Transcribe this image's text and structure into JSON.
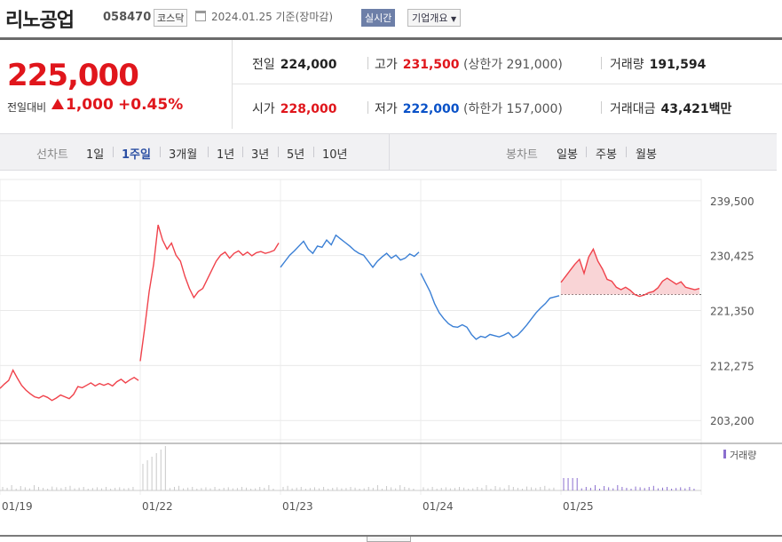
{
  "header": {
    "name": "리노공업",
    "code": "058470",
    "market": "코스닥",
    "date": "2024.01.25 기준(장마감)",
    "realtime": "실시간",
    "company_info": "기업개요"
  },
  "price": {
    "current": "225,000",
    "diff_label": "전일대비",
    "diff_value": "1,000",
    "rate": "+0.45%"
  },
  "stats": {
    "prev_label": "전일",
    "prev_value": "224,000",
    "high_label": "고가",
    "high_value": "231,500",
    "upper_limit": "(상한가 291,000)",
    "volume_label": "거래량",
    "volume_value": "191,594",
    "open_label": "시가",
    "open_value": "228,000",
    "low_label": "저가",
    "low_value": "222,000",
    "lower_limit": "(하한가 157,000)",
    "amount_label": "거래대금",
    "amount_value": "43,421",
    "amount_unit": "백만"
  },
  "tabs": {
    "line_label": "선차트",
    "periods": [
      "1일",
      "1주일",
      "3개월",
      "1년",
      "3년",
      "5년",
      "10년"
    ],
    "active_period": "1주일",
    "candle_label": "봉차트",
    "candles": [
      "일봉",
      "주봉",
      "월봉"
    ]
  },
  "colors": {
    "up": "#f0424b",
    "down": "#3a7fd5",
    "accent_red": "#e0161c",
    "accent_blue": "#0a52c8",
    "volume": "#8b6fcf"
  },
  "chart_data": {
    "type": "line",
    "title": "",
    "xlabel": "",
    "ylabel": "",
    "ylim": [
      200000,
      243000
    ],
    "y_ticks": [
      "239,500",
      "230,425",
      "221,350",
      "212,275",
      "203,200"
    ],
    "y_tick_values": [
      239500,
      230425,
      221350,
      212275,
      203200
    ],
    "x_ticks": [
      "01/19",
      "01/22",
      "01/23",
      "01/24",
      "01/25"
    ],
    "prev_close_reference": 224000,
    "volume_legend": "거래량",
    "series": [
      {
        "day": "01/19",
        "values": [
          208500,
          209200,
          209800,
          211500,
          210200,
          209000,
          208200,
          207600,
          207100,
          206900,
          207300,
          207000,
          206500,
          206900,
          207400,
          207100,
          206800,
          207500,
          208800,
          208600,
          209000,
          209400,
          208900,
          209300,
          209000,
          209300,
          208900,
          209600,
          210000,
          209400,
          209900,
          210300,
          209800
        ]
      },
      {
        "day": "01/22",
        "values": [
          213000,
          218500,
          224500,
          229000,
          235500,
          233000,
          231500,
          232500,
          230500,
          229500,
          227000,
          225000,
          223500,
          224500,
          225000,
          226500,
          228000,
          229500,
          230500,
          231000,
          230000,
          230800,
          231200,
          230500,
          231000,
          230400,
          230900,
          231100,
          230800,
          231000,
          231300,
          232500
        ]
      },
      {
        "day": "01/23",
        "values": [
          228500,
          229500,
          230500,
          231200,
          232000,
          232800,
          231500,
          230800,
          232000,
          231800,
          233000,
          232200,
          233800,
          233200,
          232600,
          232000,
          231300,
          230800,
          230500,
          229500,
          228500,
          229500,
          230200,
          230800,
          230000,
          230500,
          229700,
          230000,
          230700,
          230300,
          231000
        ]
      },
      {
        "day": "01/24",
        "values": [
          227500,
          226000,
          224500,
          222500,
          221000,
          220000,
          219200,
          218700,
          218600,
          219000,
          218600,
          217400,
          216600,
          217100,
          216900,
          217400,
          217200,
          217000,
          217300,
          217700,
          216900,
          217300,
          218100,
          219000,
          220000,
          221000,
          221800,
          222500,
          223400,
          223600,
          223800
        ]
      },
      {
        "day": "01/25",
        "values": [
          226000,
          227000,
          228000,
          229000,
          229800,
          227500,
          230200,
          231500,
          229500,
          228200,
          226500,
          226200,
          225200,
          224800,
          225200,
          224700,
          224000,
          223700,
          223900,
          224300,
          224500,
          225100,
          226200,
          226700,
          226200,
          225700,
          226100,
          225200,
          225000,
          224800,
          225000
        ]
      }
    ],
    "volume_relative": [
      0.2,
      0.15,
      0.3,
      0.1,
      0.25,
      0.18,
      0.12,
      0.3,
      0.2,
      0.15,
      0.1,
      0.22,
      0.18,
      0.14,
      0.2,
      0.26,
      0.12,
      0.16,
      0.2,
      0.1,
      0.14,
      0.18,
      0.12,
      0.2,
      0.1,
      0.15,
      0.18,
      0.12,
      0.14,
      0.2,
      0.16,
      0.1,
      0.12
    ]
  }
}
